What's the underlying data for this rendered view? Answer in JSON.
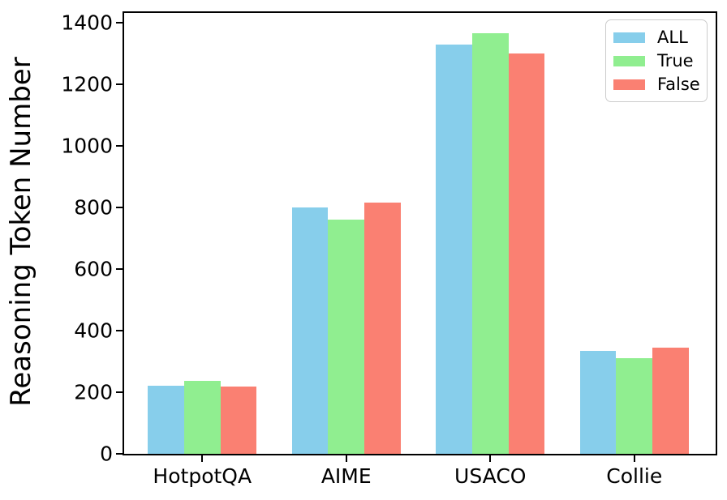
{
  "chart_data": {
    "type": "bar",
    "title": "",
    "xlabel": "",
    "ylabel": "Reasoning Token Number",
    "categories": [
      "HotpotQA",
      "AIME",
      "USACO",
      "Collie"
    ],
    "series": [
      {
        "name": "ALL",
        "color": "#87CEEB",
        "values": [
          220,
          800,
          1330,
          335
        ]
      },
      {
        "name": "True",
        "color": "#90EE90",
        "values": [
          238,
          760,
          1365,
          310
        ]
      },
      {
        "name": "False",
        "color": "#FA8072",
        "values": [
          218,
          815,
          1300,
          345
        ]
      }
    ],
    "yticks": [
      0,
      200,
      400,
      600,
      800,
      1000,
      1200,
      1400
    ],
    "ylim": [
      0,
      1432
    ],
    "grid": false,
    "legend_position": "upper right",
    "axis_color": "#000000",
    "background_color": "#ffffff"
  }
}
